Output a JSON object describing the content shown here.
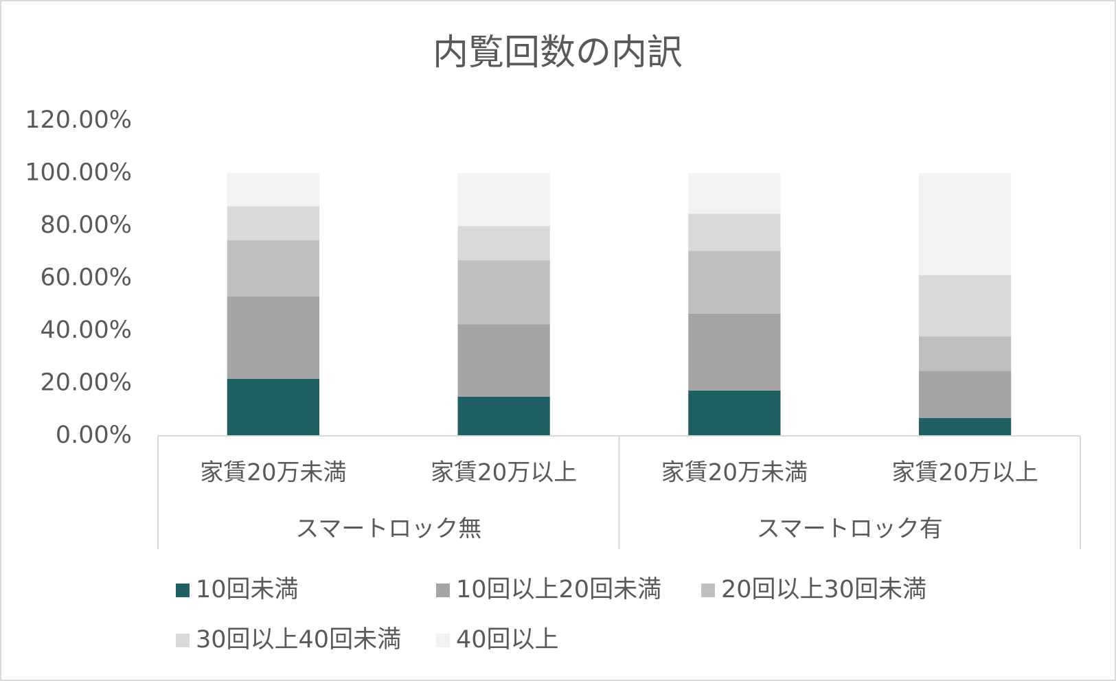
{
  "chart_data": {
    "type": "stacked_bar",
    "title": "内覧回数の内訳",
    "categories": [
      "家賃20万未満",
      "家賃20万以上",
      "家賃20万未満",
      "家賃20万以上"
    ],
    "groups": [
      "スマートロック無",
      "スマートロック有"
    ],
    "series": [
      {
        "name": "10回未満",
        "color": "#1f6064",
        "values": [
          21.7,
          14.9,
          17.3,
          6.8
        ]
      },
      {
        "name": "10回以上20回未満",
        "color": "#a5a5a5",
        "values": [
          31.4,
          27.6,
          29.3,
          17.9
        ]
      },
      {
        "name": "20回以上30回未満",
        "color": "#bfbfbf",
        "values": [
          21.4,
          24.4,
          23.9,
          13.2
        ]
      },
      {
        "name": "30回以上40回未満",
        "color": "#d9d9d9",
        "values": [
          13.0,
          13.0,
          14.1,
          23.3
        ]
      },
      {
        "name": "40回以上",
        "color": "#f2f2f2",
        "values": [
          12.5,
          20.1,
          15.4,
          38.8
        ]
      }
    ],
    "ylim": [
      0,
      120
    ],
    "yticks": [
      {
        "value": 0,
        "label": "0.00%"
      },
      {
        "value": 20,
        "label": "20.00%"
      },
      {
        "value": 40,
        "label": "40.00%"
      },
      {
        "value": 60,
        "label": "60.00%"
      },
      {
        "value": 80,
        "label": "80.00%"
      },
      {
        "value": 100,
        "label": "100.00%"
      },
      {
        "value": 120,
        "label": "120.00%"
      }
    ],
    "grid": false,
    "legend": "bottom"
  }
}
